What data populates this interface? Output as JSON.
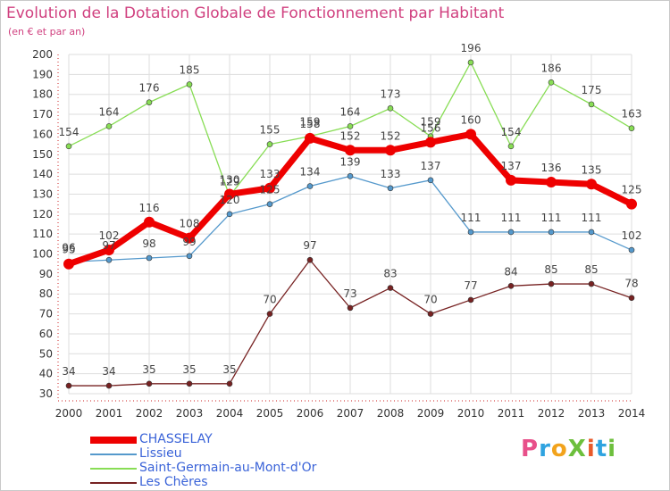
{
  "title": "Evolution de la Dotation Globale de Fonctionnement par Habitant",
  "subtitle": "(en € et par an)",
  "brand": {
    "text": "ProXiti",
    "colors": [
      "#e8508a",
      "#2fa3e0",
      "#f2a31c",
      "#6cbf3c",
      "#e85a2a",
      "#2fa3e0",
      "#6cbf3c"
    ]
  },
  "chart_data": {
    "type": "line",
    "x": [
      "2000",
      "2001",
      "2002",
      "2003",
      "2004",
      "2005",
      "2006",
      "2007",
      "2008",
      "2009",
      "2010",
      "2011",
      "2012",
      "2013",
      "2014"
    ],
    "ylim": [
      30,
      200
    ],
    "yticks": [
      30,
      40,
      50,
      60,
      70,
      80,
      90,
      100,
      110,
      120,
      130,
      140,
      150,
      160,
      170,
      180,
      190,
      200
    ],
    "grid": true,
    "legend_position": "bottom-left",
    "series": [
      {
        "name": "Saint-Germain-au-Mont-d'Or",
        "color": "#88dd55",
        "values": [
          154,
          164,
          176,
          185,
          129,
          155,
          159,
          164,
          173,
          159,
          196,
          154,
          186,
          175,
          163
        ]
      },
      {
        "name": "Lissieu",
        "color": "#5599cc",
        "values": [
          96,
          97,
          98,
          99,
          120,
          125,
          134,
          139,
          133,
          137,
          111,
          111,
          111,
          111,
          102
        ]
      },
      {
        "name": "Les Chères",
        "color": "#772222",
        "values": [
          34,
          34,
          35,
          35,
          35,
          70,
          97,
          73,
          83,
          70,
          77,
          84,
          85,
          85,
          78
        ]
      },
      {
        "name": "CHASSELAY",
        "color": "#ee0000",
        "values": [
          95,
          102,
          116,
          108,
          130,
          133,
          158,
          152,
          152,
          156,
          160,
          137,
          136,
          135,
          125
        ]
      }
    ]
  },
  "legend": [
    {
      "name": "CHASSELAY",
      "color": "#ee0000",
      "width": 8
    },
    {
      "name": "Lissieu",
      "color": "#5599cc",
      "width": 2
    },
    {
      "name": "Saint-Germain-au-Mont-d'Or",
      "color": "#88dd55",
      "width": 2
    },
    {
      "name": "Les Chères",
      "color": "#772222",
      "width": 2
    }
  ]
}
